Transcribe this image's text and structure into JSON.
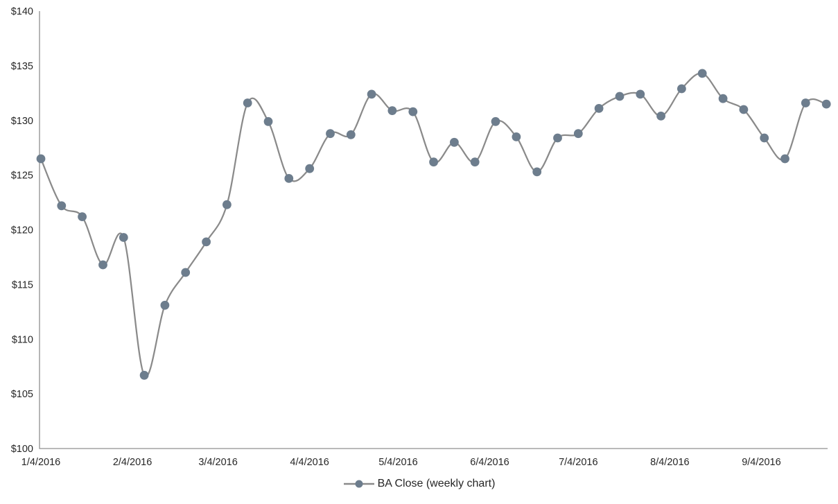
{
  "page": {
    "background_color": "#ffffff"
  },
  "legend": {
    "label": "BA Close (weekly chart)"
  },
  "chart_data": {
    "type": "line",
    "title": "",
    "xlabel": "",
    "ylabel": "",
    "smoothed": true,
    "markers": true,
    "grid": false,
    "legend_position": "bottom",
    "series": [
      {
        "name": "BA Close (weekly chart)",
        "x": [
          "1/4/2016",
          "1/11/2016",
          "1/18/2016",
          "1/25/2016",
          "2/1/2016",
          "2/8/2016",
          "2/15/2016",
          "2/22/2016",
          "2/29/2016",
          "3/7/2016",
          "3/14/2016",
          "3/21/2016",
          "3/28/2016",
          "4/4/2016",
          "4/11/2016",
          "4/18/2016",
          "4/25/2016",
          "5/2/2016",
          "5/9/2016",
          "5/16/2016",
          "5/23/2016",
          "5/30/2016",
          "6/6/2016",
          "6/13/2016",
          "6/20/2016",
          "6/27/2016",
          "7/4/2016",
          "7/11/2016",
          "7/18/2016",
          "7/25/2016",
          "8/1/2016",
          "8/8/2016",
          "8/15/2016",
          "8/22/2016",
          "8/29/2016",
          "9/5/2016",
          "9/12/2016",
          "9/19/2016",
          "9/26/2016"
        ],
        "values": [
          126.5,
          122.2,
          121.2,
          116.8,
          119.3,
          106.7,
          113.1,
          116.1,
          118.9,
          122.3,
          131.6,
          129.9,
          124.7,
          125.6,
          128.8,
          128.7,
          132.4,
          130.9,
          130.8,
          126.2,
          128.0,
          126.2,
          129.9,
          128.5,
          125.3,
          128.4,
          128.8,
          131.1,
          132.2,
          132.4,
          130.4,
          132.9,
          134.3,
          132.0,
          131.0,
          128.4,
          126.5,
          131.6,
          131.5
        ]
      }
    ],
    "x_ticks": [
      "1/4/2016",
      "2/4/2016",
      "3/4/2016",
      "4/4/2016",
      "5/4/2016",
      "6/4/2016",
      "7/4/2016",
      "8/4/2016",
      "9/4/2016"
    ],
    "y_ticks": [
      "$100",
      "$105",
      "$110",
      "$115",
      "$120",
      "$125",
      "$130",
      "$135",
      "$140"
    ],
    "ylim": [
      100,
      140
    ],
    "y_tick_step": 5,
    "y_tick_prefix": "$",
    "colors": {
      "line": "#8a8a8a",
      "marker": "#6d7d8d",
      "axis": "#8f8f8f",
      "tick_text": "#262626"
    }
  }
}
